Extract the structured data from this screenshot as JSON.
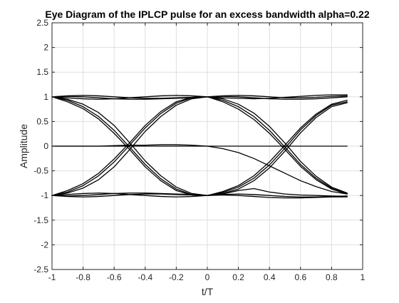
{
  "chart_data": {
    "type": "line",
    "title": "Eye Diagram of the IPLCP pulse for an excess bandwidth alpha=0.22",
    "xlabel": "t/T",
    "ylabel": "Amplitude",
    "xlim": [
      -1,
      1
    ],
    "ylim": [
      -2.5,
      2.5
    ],
    "xticks": [
      -1,
      -0.8,
      -0.6,
      -0.4,
      -0.2,
      0,
      0.2,
      0.4,
      0.6,
      0.8,
      1
    ],
    "xtick_labels": [
      "-1",
      "-0.8",
      "-0.6",
      "-0.4",
      "-0.2",
      "0",
      "0.2",
      "0.4",
      "0.6",
      "0.8",
      "1"
    ],
    "yticks": [
      -2.5,
      -2,
      -1.5,
      -1,
      -0.5,
      0,
      0.5,
      1,
      1.5,
      2,
      2.5
    ],
    "ytick_labels": [
      "-2.5",
      "-2",
      "-1.5",
      "-1",
      "-0.5",
      "0",
      "0.5",
      "1",
      "1.5",
      "2",
      "2.5"
    ],
    "grid": true,
    "line_color": "#000000",
    "series": [
      {
        "x": [
          -1,
          -0.9,
          -0.8,
          -0.7,
          -0.6,
          -0.5,
          -0.4,
          -0.3,
          -0.2,
          -0.1,
          0,
          0.1,
          0.2,
          0.3,
          0.4,
          0.5,
          0.6,
          0.7,
          0.8,
          0.9
        ],
        "y": [
          1,
          1.02,
          1.03,
          1.02,
          1.0,
          0.98,
          0.97,
          0.97,
          0.98,
          0.99,
          1,
          1.02,
          1.03,
          1.02,
          1.0,
          0.98,
          0.98,
          0.99,
          1.01,
          1.02
        ]
      },
      {
        "x": [
          -1,
          -0.9,
          -0.8,
          -0.7,
          -0.6,
          -0.5,
          -0.4,
          -0.3,
          -0.2,
          -0.1,
          0,
          0.1,
          0.2,
          0.3,
          0.4,
          0.5,
          0.6,
          0.7,
          0.8,
          0.9
        ],
        "y": [
          1,
          1.01,
          1.0,
          0.98,
          0.96,
          0.95,
          0.95,
          0.96,
          0.97,
          0.98,
          1,
          1.01,
          1.0,
          0.98,
          0.96,
          0.95,
          0.95,
          0.96,
          0.98,
          1.0
        ]
      },
      {
        "x": [
          -1,
          -0.9,
          -0.8,
          -0.7,
          -0.6,
          -0.5,
          -0.4,
          -0.3,
          -0.2,
          -0.1,
          0,
          0.1,
          0.2,
          0.3,
          0.4,
          0.5,
          0.6,
          0.7,
          0.8,
          0.9
        ],
        "y": [
          1,
          0.98,
          0.96,
          0.95,
          0.96,
          0.98,
          1.0,
          1.02,
          1.03,
          1.02,
          1,
          0.98,
          0.97,
          0.96,
          0.97,
          0.99,
          1.01,
          1.03,
          1.04,
          1.04
        ]
      },
      {
        "x": [
          -1,
          -0.9,
          -0.8,
          -0.7,
          -0.6,
          -0.5,
          -0.4,
          -0.3,
          -0.2,
          -0.1,
          0,
          0.1,
          0.2,
          0.3,
          0.4,
          0.5,
          0.6,
          0.7,
          0.8,
          0.9
        ],
        "y": [
          1,
          0.95,
          0.85,
          0.68,
          0.42,
          0.07,
          -0.3,
          -0.6,
          -0.83,
          -0.96,
          -1,
          -0.97,
          -0.9,
          -0.86,
          -0.93,
          -0.97,
          -0.99,
          -1.0,
          -1.01,
          -1.02
        ]
      },
      {
        "x": [
          -1,
          -0.9,
          -0.8,
          -0.7,
          -0.6,
          -0.5,
          -0.4,
          -0.3,
          -0.2,
          -0.1,
          0,
          0.1,
          0.2,
          0.3,
          0.4,
          0.5,
          0.6,
          0.7,
          0.8,
          0.9
        ],
        "y": [
          1,
          0.93,
          0.8,
          0.6,
          0.32,
          -0.02,
          -0.37,
          -0.66,
          -0.87,
          -0.98,
          -1,
          -0.98,
          -0.97,
          -0.98,
          -1.0,
          -1.02,
          -1.03,
          -1.03,
          -1.02,
          -1.01
        ]
      },
      {
        "x": [
          -1,
          -0.9,
          -0.8,
          -0.7,
          -0.6,
          -0.5,
          -0.4,
          -0.3,
          -0.2,
          -0.1,
          0,
          0.1,
          0.2,
          0.3,
          0.4,
          0.5,
          0.6,
          0.7,
          0.8,
          0.9
        ],
        "y": [
          1,
          0.9,
          0.76,
          0.55,
          0.26,
          -0.07,
          -0.42,
          -0.7,
          -0.9,
          -0.99,
          -1,
          -0.99,
          -1.0,
          -1.02,
          -1.04,
          -1.05,
          -1.05,
          -1.04,
          -1.03,
          -1.03
        ]
      },
      {
        "x": [
          -1,
          -0.9,
          -0.8,
          -0.7,
          -0.6,
          -0.5,
          -0.4,
          -0.3,
          -0.2,
          -0.1,
          0,
          0.1,
          0.2,
          0.3,
          0.4,
          0.5,
          0.6,
          0.7,
          0.8,
          0.9
        ],
        "y": [
          -1,
          -0.9,
          -0.76,
          -0.55,
          -0.26,
          0.07,
          0.42,
          0.7,
          0.9,
          0.99,
          1,
          0.9,
          0.75,
          0.54,
          0.26,
          -0.07,
          -0.41,
          -0.68,
          -0.87,
          -0.97
        ]
      },
      {
        "x": [
          -1,
          -0.9,
          -0.8,
          -0.7,
          -0.6,
          -0.5,
          -0.4,
          -0.3,
          -0.2,
          -0.1,
          0,
          0.1,
          0.2,
          0.3,
          0.4,
          0.5,
          0.6,
          0.7,
          0.8,
          0.9
        ],
        "y": [
          -1,
          -0.93,
          -0.8,
          -0.6,
          -0.32,
          0.02,
          0.37,
          0.66,
          0.87,
          0.98,
          1,
          0.93,
          0.8,
          0.6,
          0.32,
          -0.02,
          -0.37,
          -0.65,
          -0.85,
          -0.96
        ]
      },
      {
        "x": [
          -1,
          -0.9,
          -0.8,
          -0.7,
          -0.6,
          -0.5,
          -0.4,
          -0.3,
          -0.2,
          -0.1,
          0,
          0.1,
          0.2,
          0.3,
          0.4,
          0.5,
          0.6,
          0.7,
          0.8,
          0.9
        ],
        "y": [
          -1,
          -0.95,
          -0.85,
          -0.68,
          -0.42,
          -0.07,
          0.3,
          0.6,
          0.83,
          0.96,
          1,
          0.96,
          0.85,
          0.67,
          0.4,
          0.06,
          -0.31,
          -0.61,
          -0.83,
          -0.95
        ]
      },
      {
        "x": [
          -1,
          -0.9,
          -0.8,
          -0.7,
          -0.6,
          -0.5,
          -0.4,
          -0.3,
          -0.2,
          -0.1,
          0,
          0.1,
          0.2,
          0.3,
          0.4,
          0.5,
          0.6,
          0.7,
          0.8,
          0.9
        ],
        "y": [
          -1,
          -1.02,
          -1.03,
          -1.02,
          -1.0,
          -0.98,
          -0.97,
          -0.97,
          -0.98,
          -0.99,
          -1,
          -0.92,
          -0.8,
          -0.6,
          -0.32,
          0.02,
          0.37,
          0.65,
          0.85,
          0.93
        ]
      },
      {
        "x": [
          -1,
          -0.9,
          -0.8,
          -0.7,
          -0.6,
          -0.5,
          -0.4,
          -0.3,
          -0.2,
          -0.1,
          0,
          0.1,
          0.2,
          0.3,
          0.4,
          0.5,
          0.6,
          0.7,
          0.8,
          0.9
        ],
        "y": [
          -1,
          -1.01,
          -1.0,
          -0.98,
          -0.96,
          -0.95,
          -0.95,
          -0.96,
          -0.97,
          -0.98,
          -1,
          -0.94,
          -0.83,
          -0.65,
          -0.38,
          -0.04,
          0.33,
          0.62,
          0.83,
          0.9
        ]
      },
      {
        "x": [
          -1,
          -0.9,
          -0.8,
          -0.7,
          -0.6,
          -0.5,
          -0.4,
          -0.3,
          -0.2,
          -0.1,
          0,
          0.1,
          0.2,
          0.3,
          0.4,
          0.5,
          0.6,
          0.7,
          0.8,
          0.9
        ],
        "y": [
          -1,
          -0.98,
          -0.96,
          -0.95,
          -0.96,
          -0.98,
          -1.0,
          -1.02,
          -1.03,
          -1.02,
          -1,
          -0.96,
          -0.87,
          -0.7,
          -0.44,
          -0.1,
          0.27,
          0.58,
          0.8,
          0.88
        ]
      },
      {
        "x": [
          -1,
          -0.9,
          -0.8,
          -0.7,
          -0.6,
          -0.5,
          -0.4,
          -0.3,
          -0.2,
          -0.1,
          0,
          0.1,
          0.2,
          0.3,
          0.4,
          0.5,
          0.6,
          0.7,
          0.8,
          0.9
        ],
        "y": [
          0,
          0,
          0,
          0,
          0,
          0,
          0,
          0,
          0,
          0,
          0,
          0,
          0,
          0,
          0,
          0,
          0,
          0,
          0,
          0
        ]
      },
      {
        "x": [
          -1,
          -0.9,
          -0.8,
          -0.7,
          -0.6,
          -0.5,
          -0.4,
          -0.3,
          -0.2,
          -0.1,
          0,
          0.1,
          0.2,
          0.3,
          0.4,
          0.5,
          0.6,
          0.7,
          0.8,
          0.9
        ],
        "y": [
          0,
          0,
          0,
          0,
          0.01,
          0.02,
          0.02,
          0.03,
          0.03,
          0.02,
          0,
          -0.05,
          -0.13,
          -0.25,
          -0.4,
          -0.55,
          -0.7,
          -0.82,
          -0.92,
          -0.97
        ]
      }
    ]
  }
}
